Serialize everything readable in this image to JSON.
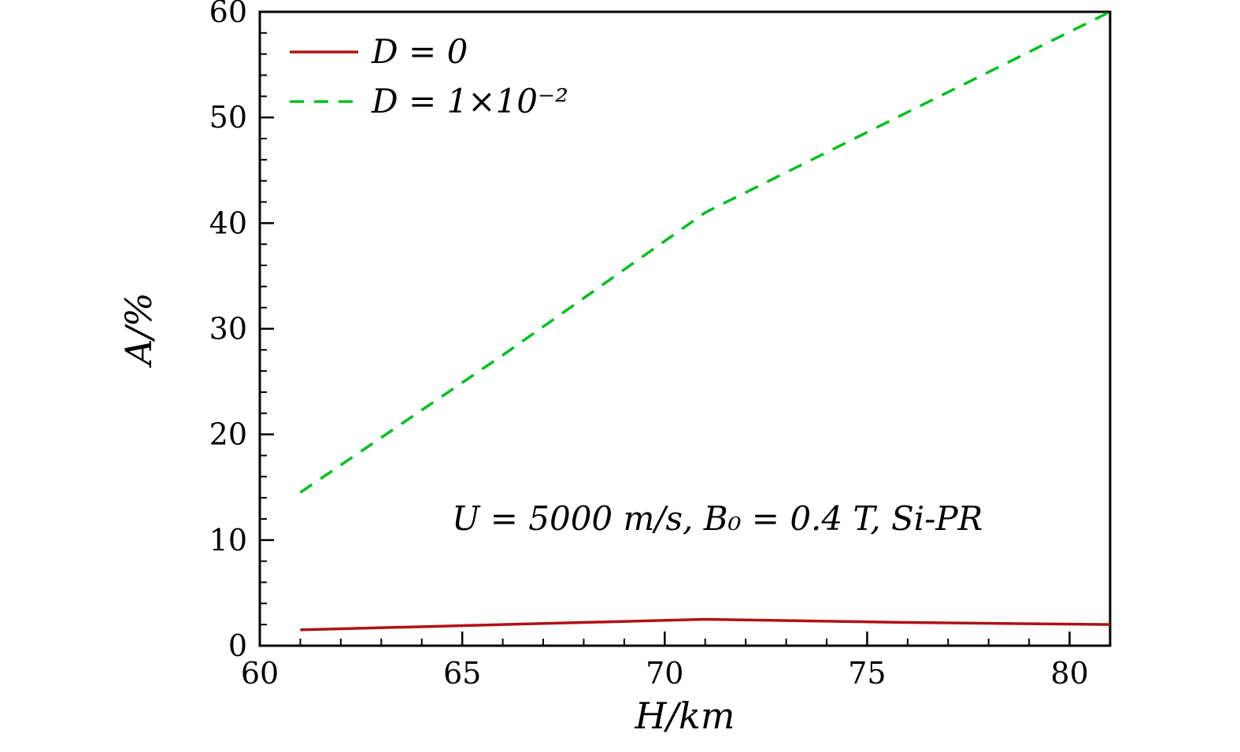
{
  "figure": {
    "background": "#ffffff",
    "frame_color": "#000000"
  },
  "chart_data": {
    "type": "line",
    "title": "",
    "xlabel": "H/km",
    "ylabel": "A/%",
    "xlim": [
      60,
      81
    ],
    "ylim": [
      0,
      60
    ],
    "x_major_ticks": [
      60,
      65,
      70,
      75,
      80
    ],
    "x_minor_step": 1,
    "y_major_ticks": [
      0,
      10,
      20,
      30,
      40,
      50,
      60
    ],
    "y_minor_step": 2,
    "grid": false,
    "legend_position": "top-left-inside",
    "annotation": {
      "text": "U = 5000 m/s, B₀ = 0.4 T, Si-PR",
      "x": 71.3,
      "y": 12
    },
    "x": [
      61,
      66,
      71,
      76,
      81
    ],
    "series": [
      {
        "name": "D = 0",
        "color": "#b01212",
        "style": "solid",
        "values": [
          1.5,
          2.0,
          2.5,
          2.2,
          2.0
        ]
      },
      {
        "name": "D = 1×10⁻²",
        "color": "#00c020",
        "style": "dashed",
        "values": [
          14.5,
          27.5,
          41.0,
          50.5,
          60.0
        ]
      }
    ]
  }
}
